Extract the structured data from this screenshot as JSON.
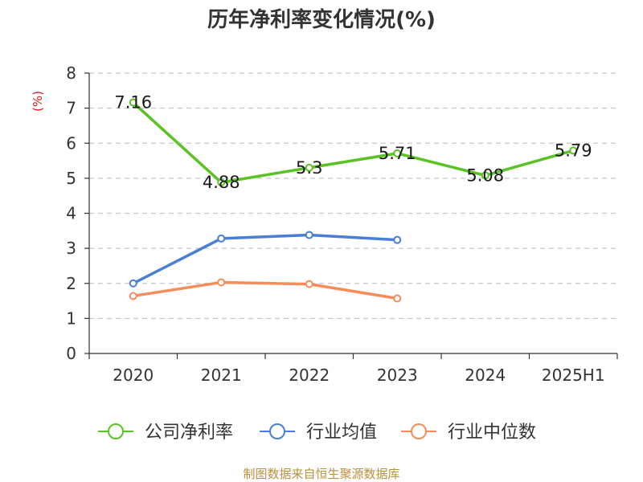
{
  "chart_data": {
    "type": "line",
    "title": "历年净利率变化情况(%)",
    "unit": "(%)",
    "categories": [
      "2020",
      "2021",
      "2022",
      "2023",
      "2024",
      "2025H1"
    ],
    "ylim": [
      0,
      8
    ],
    "yticks": [
      0,
      1,
      2,
      3,
      4,
      5,
      6,
      7,
      8
    ],
    "grid": true,
    "legend_position": "bottom",
    "series": [
      {
        "name": "公司净利率",
        "color": "#5bc225",
        "values": [
          7.16,
          4.88,
          5.3,
          5.71,
          5.08,
          5.79
        ],
        "labels": [
          "7.16",
          "4.88",
          "5.3",
          "5.71",
          "5.08",
          "5.79"
        ]
      },
      {
        "name": "行业均值",
        "color": "#4a7fd8",
        "values": [
          2.0,
          3.28,
          3.38,
          3.24,
          null,
          null
        ],
        "labels": []
      },
      {
        "name": "行业中位数",
        "color": "#f58c5a",
        "values": [
          1.64,
          2.03,
          1.98,
          1.57,
          null,
          null
        ],
        "labels": []
      }
    ],
    "source": "制图数据来自恒生聚源数据库"
  }
}
